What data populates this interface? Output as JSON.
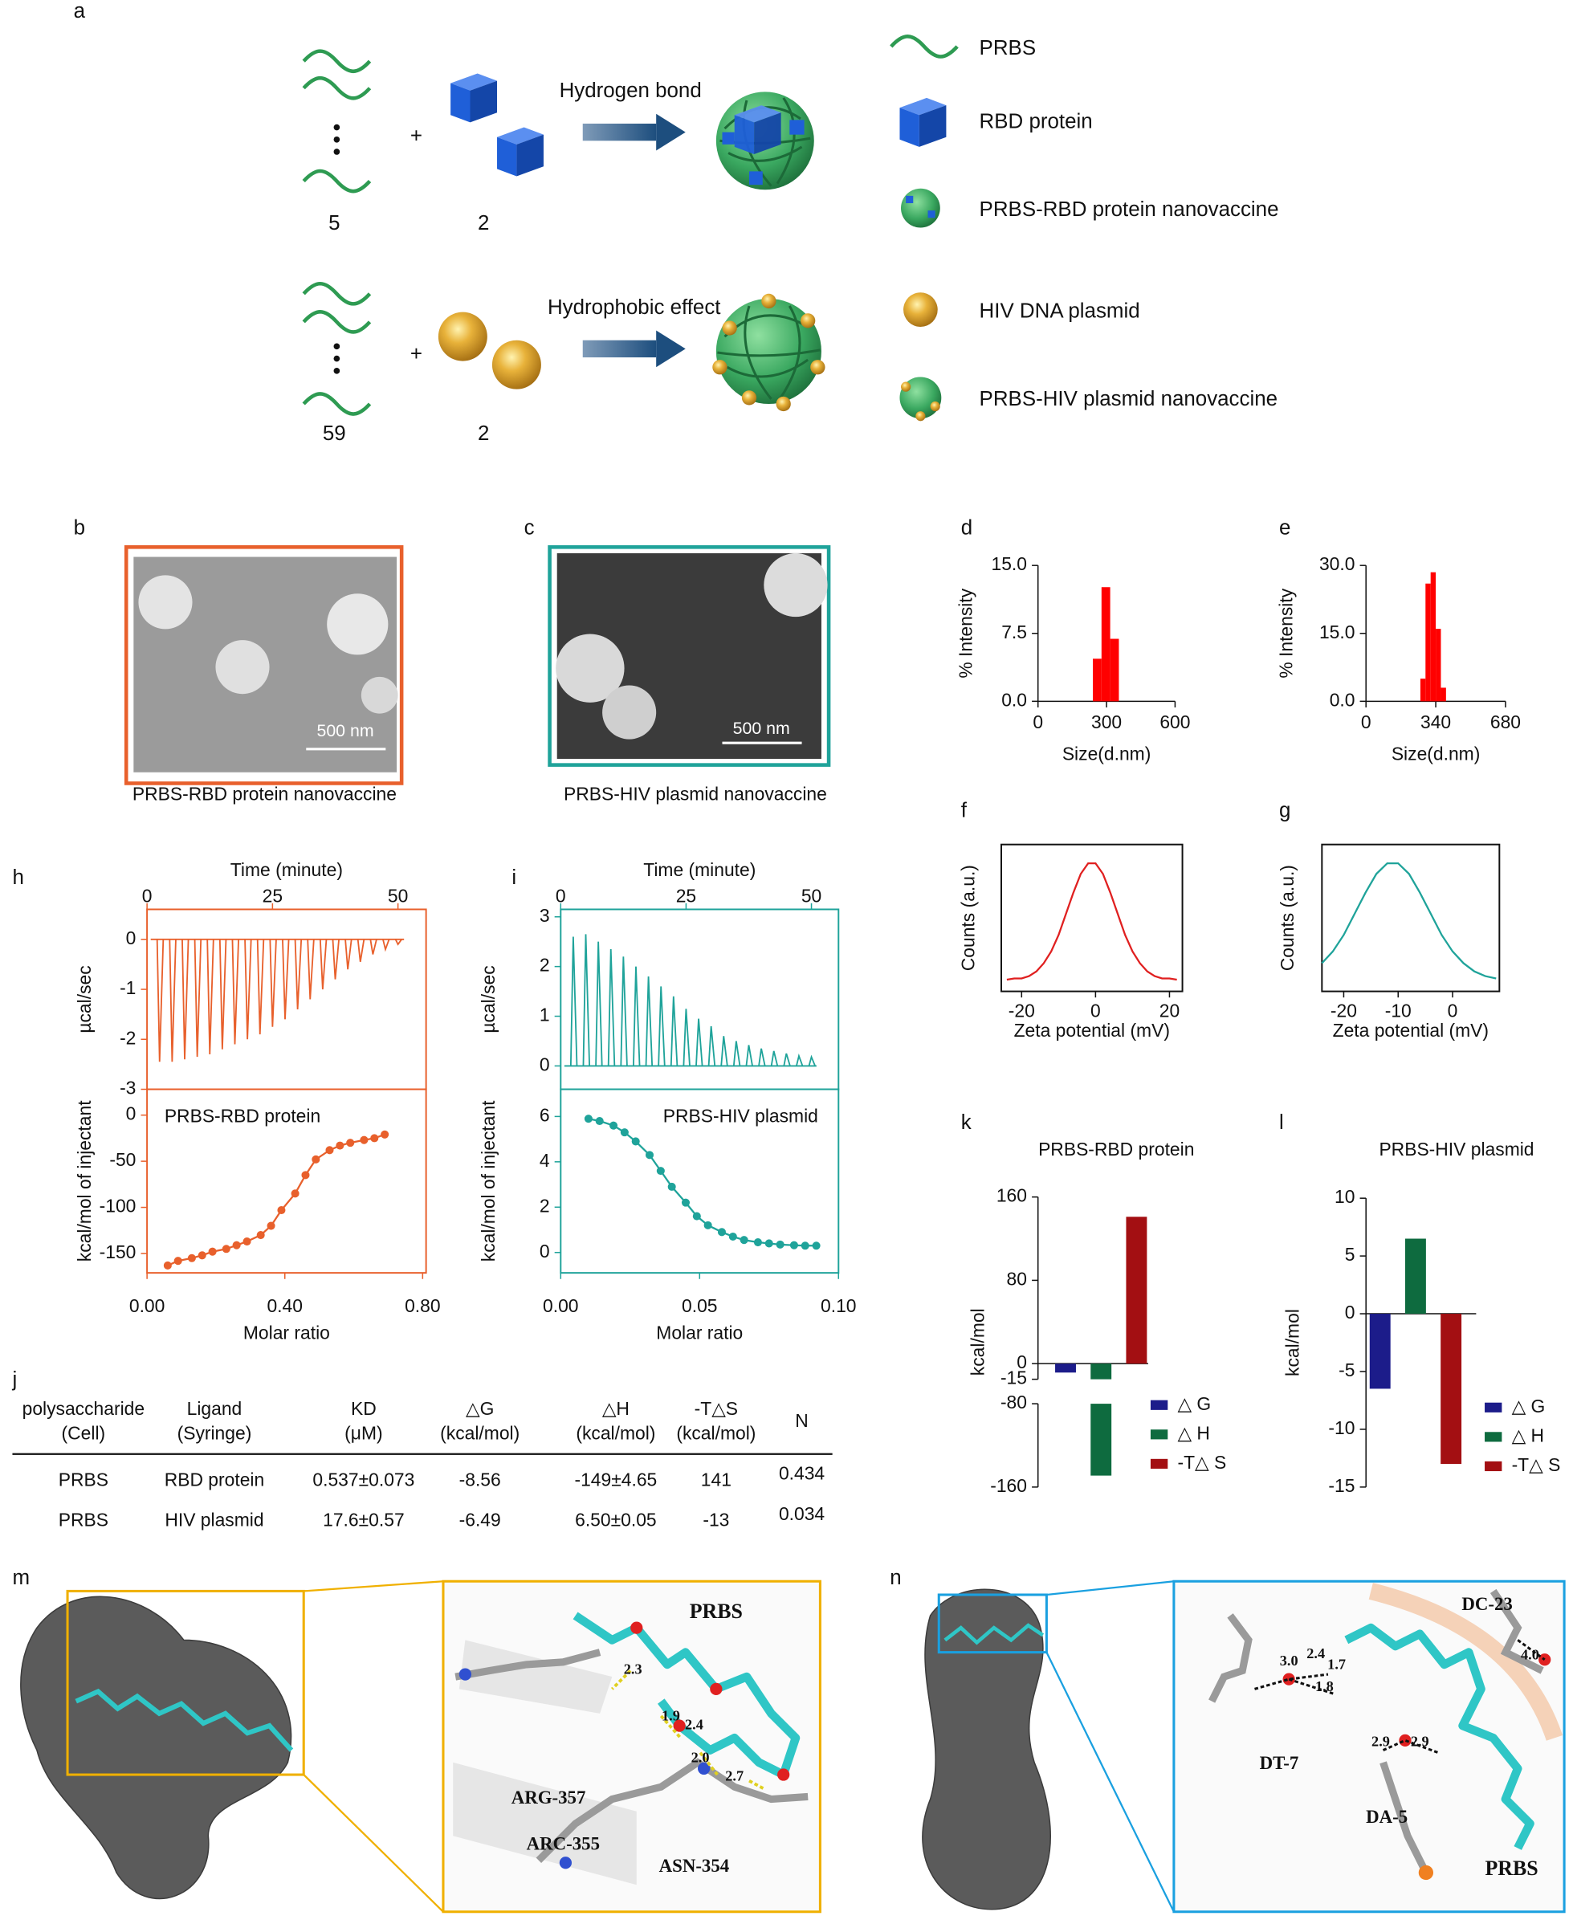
{
  "schematic": {
    "label": "a",
    "rows": [
      {
        "count": 5,
        "partner_count": 2,
        "interaction": "Hydrogen bond"
      },
      {
        "count": 59,
        "partner_count": 2,
        "interaction": "Hydrophobic effect"
      }
    ],
    "legend": [
      "PRBS",
      "RBD protein",
      "PRBS-RBD protein nanovaccine",
      "HIV DNA plasmid",
      "PRBS-HIV plasmid nanovaccine"
    ]
  },
  "micrographs": [
    {
      "label": "b",
      "scale_bar": "500 nm",
      "caption": "PRBS-RBD protein nanovaccine"
    },
    {
      "label": "c",
      "scale_bar": "500 nm",
      "caption": "PRBS-HIV plasmid nanovaccine"
    }
  ],
  "table": {
    "label": "j",
    "header": [
      [
        "polysaccharide",
        "(Cell)"
      ],
      [
        "Ligand",
        "(Syringe)"
      ],
      [
        "KD",
        "(μM)"
      ],
      [
        "△G",
        "(kcal/mol)"
      ],
      [
        "△H",
        "(kcal/mol)"
      ],
      [
        "-T△S",
        "(kcal/mol)"
      ],
      [
        "N"
      ]
    ],
    "rows": [
      [
        "PRBS",
        "RBD protein",
        "0.537±0.073",
        "-8.56",
        "-149±4.65",
        "141",
        "0.434"
      ],
      [
        "PRBS",
        "HIV  plasmid",
        "17.6±0.57",
        "-6.49",
        "6.50±0.05",
        "-13",
        "0.034"
      ]
    ]
  },
  "docking": [
    {
      "label": "m",
      "annotations": [
        "PRBS",
        "ARG-357",
        "ARC-355",
        "ASN-354",
        "2.3",
        "1.9",
        "2.4",
        "2.0",
        "2.7"
      ]
    },
    {
      "label": "n",
      "annotations": [
        "DC-23",
        "3.0",
        "2.4",
        "1.7",
        "1.8",
        "2.9",
        "2.9",
        "4.0",
        "DT-7",
        "DA-5",
        "PRBS"
      ]
    }
  ],
  "chart_data": [
    {
      "type": "histogram",
      "label": "d",
      "xlabel": "Size(d.nm)",
      "ylabel": "% Intensity",
      "color": "#ff0000",
      "bins": [
        240,
        278,
        316,
        354
      ],
      "values": [
        4.7,
        12.6,
        6.9
      ],
      "xlim": [
        0,
        600
      ],
      "xticks": [
        0,
        300,
        600
      ],
      "ylim": [
        0,
        15
      ],
      "yticks": [
        {
          "value": 0,
          "label": "0.0"
        },
        7.5,
        {
          "value": 15,
          "label": "15.0"
        }
      ]
    },
    {
      "type": "histogram",
      "label": "e",
      "xlabel": "Size(d.nm)",
      "ylabel": "% Intensity",
      "color": "#ff0000",
      "bins": [
        265,
        290,
        315,
        340,
        365,
        390
      ],
      "values": [
        5,
        26,
        28.5,
        16,
        3
      ],
      "xlim": [
        0,
        680
      ],
      "xticks": [
        0,
        340,
        680
      ],
      "ylim": [
        0,
        30
      ],
      "yticks": [
        {
          "value": 0,
          "label": "0.0"
        },
        {
          "value": 15,
          "label": "15.0"
        },
        {
          "value": 30,
          "label": "30.0"
        }
      ]
    },
    {
      "type": "line",
      "label": "f",
      "xlabel": "Zeta potential (mV)",
      "ylabel": "Counts (a.u.)",
      "color": "#e02020",
      "x": [
        -24,
        -22,
        -20,
        -18,
        -16,
        -14,
        -12,
        -10,
        -8,
        -6,
        -4,
        -2,
        0,
        2,
        4,
        6,
        8,
        10,
        12,
        14,
        16,
        18,
        20,
        22
      ],
      "values": [
        0,
        0.01,
        0.01,
        0.03,
        0.07,
        0.14,
        0.24,
        0.38,
        0.56,
        0.74,
        0.9,
        0.99,
        0.99,
        0.9,
        0.74,
        0.56,
        0.38,
        0.24,
        0.14,
        0.07,
        0.03,
        0.01,
        0.01,
        0
      ],
      "xlim": [
        -25.5,
        23.5
      ],
      "xticks": [
        -20,
        0,
        20
      ],
      "ylim": [
        -0.1,
        1.15
      ]
    },
    {
      "type": "line",
      "label": "g",
      "xlabel": "Zeta potential (mV)",
      "ylabel": "Counts (a.u.)",
      "color": "#1fa39a",
      "x": [
        -24,
        -22,
        -20,
        -18,
        -16,
        -14,
        -12,
        -10,
        -8,
        -6,
        -4,
        -2,
        0,
        2,
        4,
        6,
        8
      ],
      "values": [
        0.14,
        0.24,
        0.38,
        0.56,
        0.74,
        0.9,
        0.99,
        0.99,
        0.9,
        0.74,
        0.56,
        0.38,
        0.24,
        0.14,
        0.07,
        0.03,
        0.01
      ],
      "xlim": [
        -24,
        8.6
      ],
      "xticks": [
        -20,
        -10,
        0
      ],
      "ylim": [
        -0.1,
        1.15
      ]
    },
    {
      "type": "thermogram",
      "label": "h",
      "xlabel": "Time (minute)",
      "ylabel": "µcal/sec",
      "color": "#e8602c",
      "x": [
        2.5,
        5,
        7.5,
        10,
        12.5,
        15,
        17.5,
        20,
        22.5,
        25,
        27.5,
        30,
        32.5,
        35,
        37.5,
        40,
        42.5,
        45,
        47.5,
        50
      ],
      "values": [
        -2.45,
        -2.45,
        -2.4,
        -2.35,
        -2.3,
        -2.2,
        -2.1,
        -2.0,
        -1.9,
        -1.75,
        -1.6,
        -1.4,
        -1.2,
        -1.0,
        -0.8,
        -0.6,
        -0.45,
        -0.3,
        -0.2,
        -0.1
      ],
      "xlim": [
        0,
        55.6
      ],
      "xticks": [
        0,
        25,
        50
      ],
      "ylim": [
        -3,
        0.6
      ],
      "yticks": [
        0,
        -1,
        -2,
        -3
      ]
    },
    {
      "type": "line",
      "markers": true,
      "annotation": "PRBS-RBD protein",
      "xlabel": "Molar ratio",
      "ylabel": "kcal/mol of injectant",
      "color": "#e8602c",
      "x": [
        0.06,
        0.09,
        0.13,
        0.16,
        0.19,
        0.23,
        0.26,
        0.29,
        0.33,
        0.36,
        0.39,
        0.43,
        0.46,
        0.49,
        0.53,
        0.56,
        0.59,
        0.63,
        0.66,
        0.69
      ],
      "values": [
        -163,
        -158,
        -155,
        -152,
        -148,
        -145,
        -141,
        -137,
        -130,
        -120,
        -103,
        -85,
        -65,
        -48,
        -38,
        -33,
        -30,
        -27,
        -25,
        -21
      ],
      "xlim": [
        0,
        0.81
      ],
      "xticks": [
        {
          "value": 0,
          "label": "0.00"
        },
        {
          "value": 0.4,
          "label": "0.40"
        },
        {
          "value": 0.8,
          "label": "0.80"
        }
      ],
      "ylim": [
        -171,
        28
      ],
      "yticks": [
        0,
        -50,
        -100,
        -150
      ]
    },
    {
      "type": "thermogram",
      "label": "i",
      "xlabel": "Time (minute)",
      "ylabel": "µcal/sec",
      "color": "#1fa39a",
      "x": [
        2.5,
        5,
        7.5,
        10,
        12.5,
        15,
        17.5,
        20,
        22.5,
        25,
        27.5,
        30,
        32.5,
        35,
        37.5,
        40,
        42.5,
        45,
        47.5,
        50
      ],
      "values": [
        2.6,
        2.65,
        2.5,
        2.35,
        2.2,
        2.0,
        1.8,
        1.6,
        1.4,
        1.15,
        0.95,
        0.8,
        0.6,
        0.5,
        0.42,
        0.35,
        0.3,
        0.25,
        0.2,
        0.18
      ],
      "xlim": [
        0,
        55.4
      ],
      "xticks": [
        0,
        25,
        50
      ],
      "ylim": [
        -0.47,
        3.15
      ],
      "yticks": [
        0,
        1,
        2,
        3
      ]
    },
    {
      "type": "line",
      "markers": true,
      "annotation": "PRBS-HIV plasmid",
      "xlabel": "Molar ratio",
      "ylabel": "kcal/mol of injectant",
      "color": "#1fa39a",
      "x": [
        0.01,
        0.014,
        0.019,
        0.023,
        0.027,
        0.032,
        0.036,
        0.04,
        0.045,
        0.049,
        0.053,
        0.058,
        0.062,
        0.066,
        0.071,
        0.075,
        0.079,
        0.084,
        0.088,
        0.092
      ],
      "values": [
        5.9,
        5.8,
        5.6,
        5.3,
        4.9,
        4.3,
        3.6,
        2.9,
        2.2,
        1.6,
        1.2,
        0.9,
        0.7,
        0.55,
        0.45,
        0.4,
        0.35,
        0.32,
        0.3,
        0.3
      ],
      "xlim": [
        0,
        0.1
      ],
      "xticks": [
        {
          "value": 0,
          "label": "0.00"
        },
        0.05,
        {
          "value": 0.1,
          "label": "0.10"
        }
      ],
      "ylim": [
        -0.9,
        7.2
      ],
      "yticks": [
        0,
        2,
        4,
        6
      ]
    },
    {
      "type": "bar",
      "label": "k",
      "title": "PRBS-RBD protein",
      "ylabel": "kcal/mol",
      "series": [
        {
          "name": "△ G",
          "color": "#1c1c8a",
          "values": [
            -8.56
          ]
        },
        {
          "name": "△ H",
          "color": "#0e6b3f",
          "values": [
            -149
          ]
        },
        {
          "name": "-T△ S",
          "color": "#a30f12",
          "values": [
            141
          ]
        }
      ],
      "ylim": [
        -160,
        160
      ],
      "ybreak": [
        -80,
        -15
      ],
      "yticks": [
        160,
        80,
        0,
        -15,
        -80,
        -160
      ]
    },
    {
      "type": "bar",
      "label": "l",
      "title": "PRBS-HIV plasmid",
      "ylabel": "kcal/mol",
      "series": [
        {
          "name": "△ G",
          "color": "#1c1c8a",
          "values": [
            -6.49
          ]
        },
        {
          "name": "△ H",
          "color": "#0e6b3f",
          "values": [
            6.5
          ]
        },
        {
          "name": "-T△ S",
          "color": "#a30f12",
          "values": [
            -13
          ]
        }
      ],
      "ylim": [
        -15,
        10
      ],
      "yticks": [
        10,
        5,
        0,
        -5,
        -10,
        -15
      ]
    }
  ]
}
